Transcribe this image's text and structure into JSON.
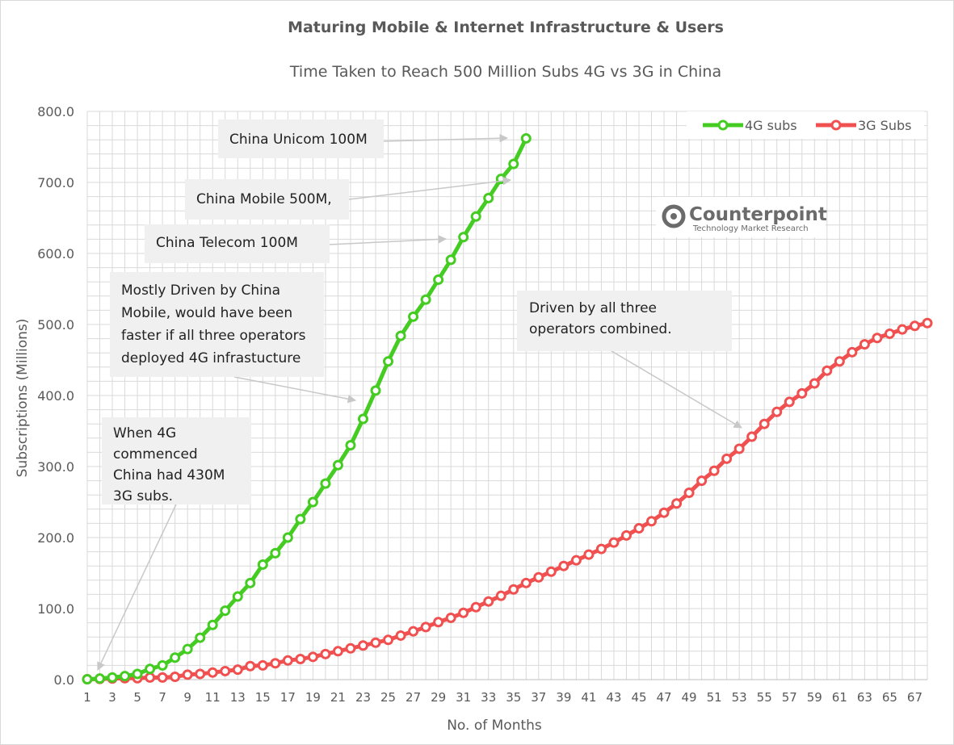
{
  "chart_data": {
    "type": "line",
    "title": "Maturing Mobile & Internet Infrastructure & Users",
    "subtitle": "Time Taken to Reach 500 Million Subs 4G vs 3G in China",
    "xlabel": "No. of Months",
    "ylabel": "Subscriptions (Millions)",
    "ylim": [
      0,
      800
    ],
    "yticks": [
      "0.0",
      "100.0",
      "200.0",
      "300.0",
      "400.0",
      "500.0",
      "600.0",
      "700.0",
      "800.0"
    ],
    "xlim": [
      1,
      68
    ],
    "xticks": [
      "1",
      "3",
      "5",
      "7",
      "9",
      "11",
      "13",
      "15",
      "17",
      "19",
      "21",
      "23",
      "25",
      "27",
      "29",
      "31",
      "33",
      "35",
      "37",
      "39",
      "41",
      "43",
      "45",
      "47",
      "49",
      "51",
      "53",
      "55",
      "57",
      "59",
      "61",
      "63",
      "65",
      "67"
    ],
    "grid": true,
    "legend_position": "top-right",
    "series": [
      {
        "name": "4G subs",
        "color": "#44cc22",
        "x": [
          1,
          2,
          3,
          4,
          5,
          6,
          7,
          8,
          9,
          10,
          11,
          12,
          13,
          14,
          15,
          16,
          17,
          18,
          19,
          20,
          21,
          22,
          23,
          24,
          25,
          26,
          27,
          28,
          29,
          30,
          31,
          32,
          33,
          34,
          35,
          36
        ],
        "values": [
          0.5,
          1.5,
          3,
          5,
          8,
          15,
          20,
          31,
          43,
          59,
          77,
          97,
          117,
          136,
          162,
          178,
          200,
          226,
          250,
          276,
          302,
          330,
          367,
          407,
          448,
          484,
          511,
          535,
          563,
          591,
          623,
          652,
          678,
          705,
          726,
          762
        ]
      },
      {
        "name": "3G Subs",
        "color": "#f05050",
        "x": [
          1,
          2,
          3,
          4,
          5,
          6,
          7,
          8,
          9,
          10,
          11,
          12,
          13,
          14,
          15,
          16,
          17,
          18,
          19,
          20,
          21,
          22,
          23,
          24,
          25,
          26,
          27,
          28,
          29,
          30,
          31,
          32,
          33,
          34,
          35,
          36,
          37,
          38,
          39,
          40,
          41,
          42,
          43,
          44,
          45,
          46,
          47,
          48,
          49,
          50,
          51,
          52,
          53,
          54,
          55,
          56,
          57,
          58,
          59,
          60,
          61,
          62,
          63,
          64,
          65,
          66,
          67,
          68
        ],
        "values": [
          0.5,
          1,
          1.5,
          2,
          2,
          3,
          3,
          4,
          7,
          8,
          10,
          12,
          14,
          19,
          20,
          23,
          27,
          29,
          32,
          36,
          40,
          44,
          48,
          52,
          56,
          62,
          68,
          74,
          81,
          87,
          94,
          102,
          110,
          118,
          127,
          136,
          144,
          152,
          160,
          168,
          176,
          184,
          193,
          203,
          213,
          223,
          235,
          248,
          263,
          280,
          294,
          311,
          325,
          342,
          360,
          377,
          391,
          403,
          417,
          435,
          448,
          461,
          472,
          481,
          487,
          493,
          498,
          502
        ]
      }
    ],
    "annotations": [
      {
        "lines": [
          "China Unicom 100M"
        ]
      },
      {
        "lines": [
          "China Mobile 500M,"
        ]
      },
      {
        "lines": [
          "China Telecom 100M"
        ]
      },
      {
        "lines": [
          "Mostly Driven by China",
          "Mobile, would have been",
          "faster if all three operators",
          "deployed 4G infrastucture"
        ]
      },
      {
        "lines": [
          "Driven by all three",
          "operators combined."
        ]
      },
      {
        "lines": [
          "When 4G",
          "commenced",
          "China had 430M",
          "3G subs."
        ]
      }
    ],
    "logo": {
      "name": "Counterpoint",
      "tagline": "Technology Market Research"
    }
  }
}
